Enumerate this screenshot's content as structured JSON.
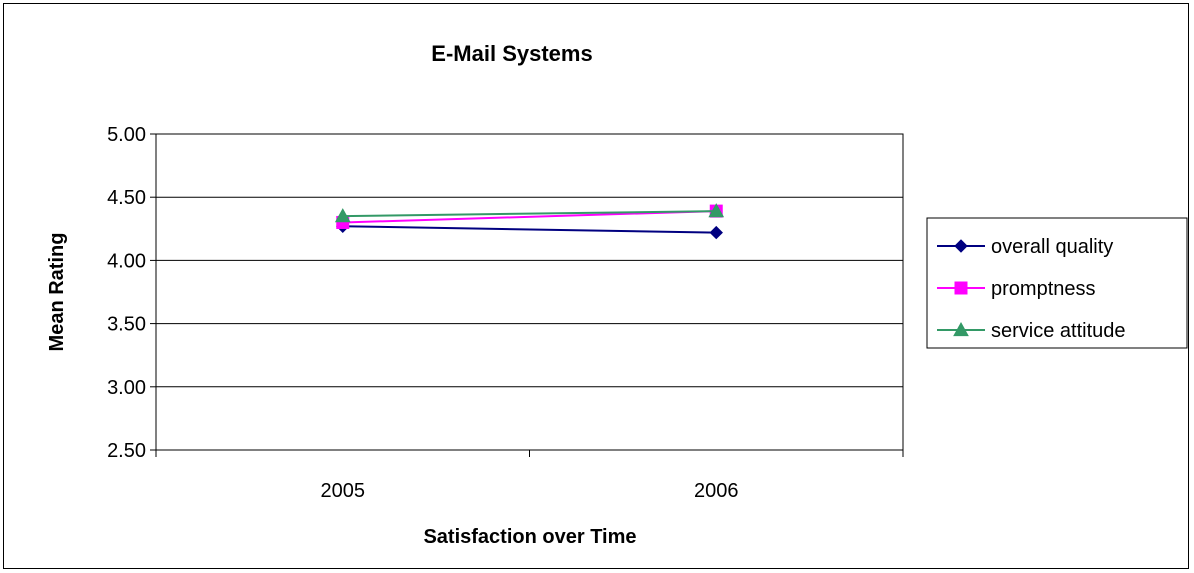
{
  "chart_data": {
    "type": "line",
    "title": "E-Mail Systems",
    "xlabel": "Satisfaction over Time",
    "ylabel": "Mean Rating",
    "categories": [
      "2005",
      "2006"
    ],
    "ylim": [
      2.5,
      5.0
    ],
    "yticks": [
      "2.50",
      "3.00",
      "3.50",
      "4.00",
      "4.50",
      "5.00"
    ],
    "grid": true,
    "legend_position": "right",
    "series": [
      {
        "name": "overall quality",
        "values": [
          4.27,
          4.22
        ],
        "color": "#000080",
        "marker": "diamond"
      },
      {
        "name": "promptness",
        "values": [
          4.3,
          4.39
        ],
        "color": "#FF00FF",
        "marker": "square"
      },
      {
        "name": "service attitude",
        "values": [
          4.35,
          4.39
        ],
        "color": "#339966",
        "marker": "triangle"
      }
    ]
  }
}
